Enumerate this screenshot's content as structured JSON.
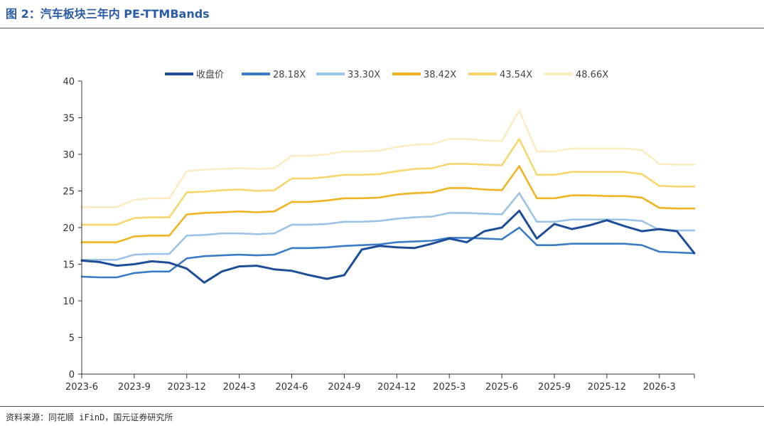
{
  "title": "图 2：汽车板块三年内 PE-TTMBands",
  "source": "资料来源：同花顺 iFinD，国元证券研究所",
  "chart_data": {
    "type": "line",
    "title": "",
    "xlabel": "",
    "ylabel": "",
    "ylim": [
      0,
      40
    ],
    "yticks": [
      0,
      5,
      10,
      15,
      20,
      25,
      30,
      35,
      40
    ],
    "xticks": [
      "2023-6",
      "2023-9",
      "2023-12",
      "2024-3",
      "2024-6",
      "2024-9",
      "2024-12",
      "2025-3",
      "2025-6",
      "2025-9",
      "2025-12",
      "2026-3"
    ],
    "grid": false,
    "legend": "top",
    "x": [
      "2023-6",
      "2023-7",
      "2023-8",
      "2023-9",
      "2023-10",
      "2023-11",
      "2023-12",
      "2024-1",
      "2024-2",
      "2024-3",
      "2024-4",
      "2024-5",
      "2024-6",
      "2024-7",
      "2024-8",
      "2024-9",
      "2024-10",
      "2024-11",
      "2024-12",
      "2025-1",
      "2025-2",
      "2025-3",
      "2025-4",
      "2025-5",
      "2025-6",
      "2025-7",
      "2025-8",
      "2025-9",
      "2025-10",
      "2025-11",
      "2025-12",
      "2026-1",
      "2026-2",
      "2026-3",
      "2026-4",
      "2026-5"
    ],
    "series": [
      {
        "name": "收盘价",
        "color": "#1f4e99",
        "values": [
          15.5,
          15.3,
          14.8,
          15.0,
          15.4,
          15.2,
          14.4,
          12.5,
          14.0,
          14.7,
          14.8,
          14.3,
          14.1,
          13.5,
          13.0,
          13.5,
          17.0,
          17.5,
          17.3,
          17.2,
          17.8,
          18.5,
          18.0,
          19.5,
          20.0,
          22.3,
          18.5,
          20.5,
          19.8,
          20.3,
          21.0,
          20.2,
          19.5,
          19.8,
          19.5,
          16.5
        ]
      },
      {
        "name": "28.18X",
        "color": "#3a7cc6",
        "values": [
          13.3,
          13.2,
          13.2,
          13.8,
          14.0,
          14.0,
          15.8,
          16.1,
          16.2,
          16.3,
          16.2,
          16.3,
          17.2,
          17.2,
          17.3,
          17.5,
          17.6,
          17.7,
          18.0,
          18.1,
          18.2,
          18.6,
          18.6,
          18.5,
          18.4,
          20.0,
          17.6,
          17.6,
          17.8,
          17.8,
          17.8,
          17.8,
          17.6,
          16.7,
          16.6,
          16.5
        ]
      },
      {
        "name": "33.30X",
        "color": "#9dc3e6",
        "values": [
          15.6,
          15.6,
          15.6,
          16.3,
          16.4,
          16.4,
          18.9,
          19.0,
          19.2,
          19.2,
          19.1,
          19.2,
          20.4,
          20.4,
          20.5,
          20.8,
          20.8,
          20.9,
          21.2,
          21.4,
          21.5,
          22.0,
          22.0,
          21.9,
          21.8,
          24.7,
          20.8,
          20.8,
          21.1,
          21.1,
          21.1,
          21.1,
          20.9,
          19.7,
          19.6,
          19.6
        ]
      },
      {
        "name": "38.42X",
        "color": "#f0b321",
        "values": [
          18.0,
          18.0,
          18.0,
          18.8,
          18.9,
          18.9,
          21.8,
          22.0,
          22.1,
          22.2,
          22.1,
          22.2,
          23.5,
          23.5,
          23.7,
          24.0,
          24.0,
          24.1,
          24.5,
          24.7,
          24.8,
          25.4,
          25.4,
          25.2,
          25.1,
          28.4,
          24.0,
          24.0,
          24.4,
          24.4,
          24.3,
          24.3,
          24.1,
          22.7,
          22.6,
          22.6
        ]
      },
      {
        "name": "43.54X",
        "color": "#f8d66f",
        "values": [
          20.4,
          20.4,
          20.4,
          21.3,
          21.4,
          21.4,
          24.8,
          24.9,
          25.1,
          25.2,
          25.0,
          25.1,
          26.7,
          26.7,
          26.9,
          27.2,
          27.2,
          27.3,
          27.7,
          28.0,
          28.1,
          28.7,
          28.7,
          28.6,
          28.5,
          32.1,
          27.2,
          27.2,
          27.6,
          27.6,
          27.6,
          27.6,
          27.3,
          25.7,
          25.6,
          25.6
        ]
      },
      {
        "name": "48.66X",
        "color": "#fcecc4",
        "values": [
          22.8,
          22.8,
          22.8,
          23.8,
          24.0,
          24.0,
          27.7,
          27.9,
          28.0,
          28.1,
          28.0,
          28.1,
          29.8,
          29.8,
          30.0,
          30.4,
          30.4,
          30.5,
          31.0,
          31.3,
          31.4,
          32.1,
          32.1,
          31.9,
          31.8,
          36.0,
          30.4,
          30.4,
          30.8,
          30.8,
          30.8,
          30.8,
          30.6,
          28.7,
          28.6,
          28.6
        ]
      }
    ]
  }
}
